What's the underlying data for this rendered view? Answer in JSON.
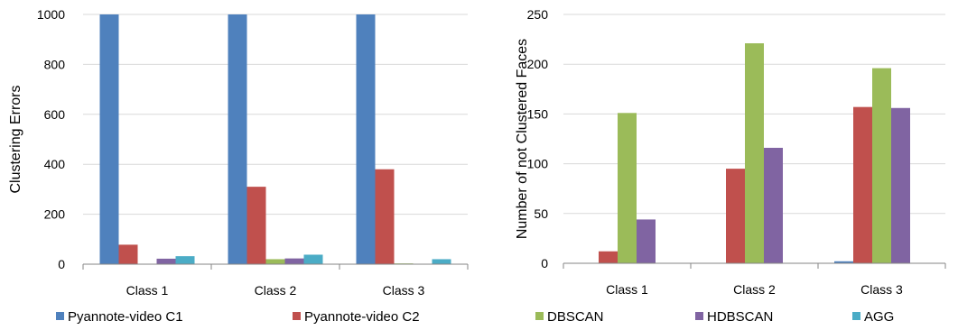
{
  "colors": {
    "Pyannote-video C1": "#4F81BD",
    "Pyannote-video C2": "#C0504D",
    "DBSCAN": "#9BBB59",
    "HDBSCAN": "#8064A2",
    "AGG": "#4BACC6",
    "grid": "#D9D9D9",
    "axis": "#868686"
  },
  "legend": [
    "Pyannote-video C1",
    "Pyannote-video C2",
    "DBSCAN",
    "HDBSCAN",
    "AGG"
  ],
  "chart_data": [
    {
      "type": "bar",
      "title": "",
      "xlabel": "",
      "ylabel": "Clustering Errors",
      "categories": [
        "Class 1",
        "Class 2",
        "Class 3"
      ],
      "ylim": [
        0,
        1000
      ],
      "yticks": [
        0,
        200,
        400,
        600,
        800,
        1000
      ],
      "grid": true,
      "series": [
        {
          "name": "Pyannote-video C1",
          "values": [
            1000,
            1000,
            1000
          ]
        },
        {
          "name": "Pyannote-video C2",
          "values": [
            78,
            310,
            380
          ]
        },
        {
          "name": "DBSCAN",
          "values": [
            0,
            20,
            3
          ]
        },
        {
          "name": "HDBSCAN",
          "values": [
            22,
            23,
            0
          ]
        },
        {
          "name": "AGG",
          "values": [
            32,
            38,
            20
          ]
        }
      ]
    },
    {
      "type": "bar",
      "title": "",
      "xlabel": "",
      "ylabel": "Number of not Clustered Faces",
      "categories": [
        "Class 1",
        "Class 2",
        "Class 3"
      ],
      "ylim": [
        0,
        250
      ],
      "yticks": [
        0,
        50,
        100,
        150,
        200,
        250
      ],
      "grid": true,
      "series": [
        {
          "name": "Pyannote-video C1",
          "values": [
            0,
            0,
            2
          ]
        },
        {
          "name": "Pyannote-video C2",
          "values": [
            12,
            95,
            157
          ]
        },
        {
          "name": "DBSCAN",
          "values": [
            151,
            221,
            196
          ]
        },
        {
          "name": "HDBSCAN",
          "values": [
            44,
            116,
            156
          ]
        },
        {
          "name": "AGG",
          "values": [
            0,
            0,
            0
          ]
        }
      ]
    }
  ]
}
